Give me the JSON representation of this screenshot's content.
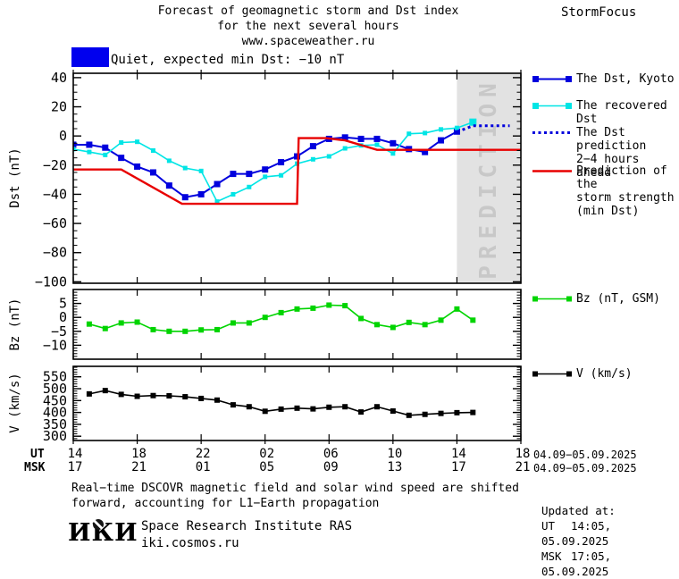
{
  "header": {
    "title_line1": "Forecast of geomagnetic storm and Dst index",
    "title_line2": "for the next several hours",
    "title_line3": "www.spaceweather.ru",
    "brand": "StormFocus"
  },
  "status": {
    "label": "Quiet, expected min Dst: −10 nT"
  },
  "legend": {
    "dst_kyoto": "The Dst, Kyoto",
    "recovered": "The recovered Dst",
    "prediction_l1": "The Dst prediction",
    "prediction_l2": "2−4 hours ahead",
    "storm_l1": "Prediction of the",
    "storm_l2": "storm strength",
    "storm_l3": "(min Dst)",
    "bz": "Bz (nT, GSM)",
    "v": "V (km/s)"
  },
  "prediction_zone": {
    "label": "PREDICTION"
  },
  "axes": {
    "ut_label": "UT",
    "msk_label": "MSK",
    "ut_ticks": [
      "14",
      "18",
      "22",
      "02",
      "06",
      "10",
      "14",
      "18"
    ],
    "msk_ticks": [
      "17",
      "21",
      "01",
      "05",
      "09",
      "13",
      "17",
      "21"
    ],
    "ut_date": "04.09−05.09.2025",
    "msk_date": "04.09−05.09.2025"
  },
  "footer": {
    "note_line1": "Real−time DSCOVR magnetic field and solar wind speed are shifted",
    "note_line2": "forward, accounting for L1−Earth propagation",
    "logo": "ИКИ",
    "institute": "Space Research Institute RAS",
    "site": "iki.cosmos.ru",
    "updated_label": "Updated at:",
    "ut_label": "UT",
    "ut_value": "14:05, 05.09.2025",
    "msk_label": "MSK",
    "msk_value": "17:05, 05.09.2025"
  },
  "colors": {
    "dst_kyoto": "#0000dd",
    "recovered": "#00e5e5",
    "prediction": "#0000dd",
    "storm": "#e80000",
    "bz": "#00d400",
    "v": "#000000",
    "quiet_level": "#0000ee",
    "zone_bg": "#e2e2e2",
    "zone_text": "#c8c8c8"
  },
  "chart_data": {
    "type": "line",
    "title": "Forecast of geomagnetic storm and Dst index for the next several hours",
    "xlim": [
      14,
      42
    ],
    "x_major_step": 4,
    "x_ticks_ut": [
      "14",
      "18",
      "22",
      "02",
      "06",
      "10",
      "14",
      "18"
    ],
    "x_ticks_msk": [
      "17",
      "21",
      "01",
      "05",
      "09",
      "13",
      "17",
      "21"
    ],
    "date_range": "04.09-05.09.2025",
    "prediction_zone_x": [
      38,
      42
    ],
    "panels": [
      {
        "name": "dst",
        "ylabel": "Dst (nT)",
        "ylim": [
          -101,
          43
        ],
        "yticks": [
          40,
          20,
          0,
          -20,
          -40,
          -60,
          -80,
          -100
        ],
        "minor_step": 5,
        "major_step": 20,
        "series": [
          {
            "key": "dst_kyoto",
            "name": "The Dst, Kyoto",
            "marker": 7,
            "width": 2,
            "x": [
              14,
              15,
              16,
              17,
              18,
              19,
              20,
              21,
              22,
              23,
              24,
              25,
              26,
              27,
              28,
              29,
              30,
              31,
              32,
              33,
              34,
              35,
              36,
              37,
              38
            ],
            "y": [
              -6,
              -6,
              -8,
              -15,
              -21,
              -25,
              -34,
              -42,
              -40,
              -33,
              -26,
              -26,
              -23,
              -18,
              -14,
              -7,
              -2,
              -1,
              -2,
              -2,
              -5,
              -9,
              -11,
              -3,
              3
            ]
          },
          {
            "key": "recovered",
            "name": "The recovered Dst",
            "marker": 5,
            "marker_last": 8,
            "width": 1.6,
            "x": [
              14,
              15,
              16,
              17,
              18,
              19,
              20,
              21,
              22,
              23,
              24,
              25,
              26,
              27,
              28,
              29,
              30,
              31,
              32,
              33,
              34,
              35,
              36,
              37,
              38,
              39
            ],
            "y": [
              -9,
              -11,
              -13,
              -4.5,
              -4,
              -10,
              -17,
              -22,
              -24,
              -45,
              -40,
              -35,
              -28,
              -27,
              -19,
              -16,
              -14,
              -8.5,
              -6.5,
              -6,
              -12,
              1.5,
              2,
              4.5,
              5.5,
              9.5
            ]
          },
          {
            "key": "prediction",
            "name": "The Dst prediction 2-4 hours ahead",
            "style": "dotted",
            "width": 3,
            "points": [
              [
                38,
                3
              ],
              [
                38.5,
                4.8
              ],
              [
                39,
                7
              ],
              [
                41.3,
                7
              ]
            ]
          },
          {
            "key": "storm",
            "name": "Prediction of the storm strength (min Dst)",
            "width": 2.4,
            "points": [
              [
                14,
                -23
              ],
              [
                17,
                -23
              ],
              [
                20.8,
                -46.5
              ],
              [
                28.0,
                -46.5
              ],
              [
                28.1,
                -1.5
              ],
              [
                29.8,
                -1.5
              ],
              [
                31,
                -3
              ],
              [
                33,
                -9.5
              ],
              [
                42,
                -9.5
              ]
            ]
          }
        ]
      },
      {
        "name": "bz",
        "ylabel": "Bz (nT)",
        "ylim": [
          -15,
          10
        ],
        "yticks": [
          5,
          0,
          -5,
          -10
        ],
        "minor_step": 1,
        "major_step": 5,
        "series": [
          {
            "key": "bz",
            "name": "Bz (nT, GSM)",
            "marker": 6,
            "width": 1.6,
            "x": [
              15,
              16,
              17,
              18,
              19,
              20,
              21,
              22,
              23,
              24,
              25,
              26,
              27,
              28,
              29,
              30,
              31,
              32,
              33,
              34,
              35,
              36,
              37,
              38,
              39
            ],
            "y": [
              -2.4,
              -4,
              -2,
              -1.7,
              -4.4,
              -5,
              -5,
              -4.5,
              -4.4,
              -2,
              -2,
              0,
              1.7,
              3,
              3.3,
              4.4,
              4.2,
              -0.4,
              -2.6,
              -3.6,
              -1.8,
              -2.6,
              -1,
              3,
              -1
            ]
          }
        ]
      },
      {
        "name": "v",
        "ylabel": "V (km/s)",
        "ylim": [
          282,
          594
        ],
        "yticks": [
          550,
          500,
          450,
          400,
          350,
          300
        ],
        "minor_step": 10,
        "major_step": 50,
        "series": [
          {
            "key": "v",
            "name": "V (km/s)",
            "marker": 6,
            "width": 1.6,
            "x": [
              15,
              16,
              17,
              18,
              19,
              20,
              21,
              22,
              23,
              24,
              25,
              26,
              27,
              28,
              29,
              30,
              31,
              32,
              33,
              34,
              35,
              36,
              37,
              38,
              39
            ],
            "y": [
              478,
              492,
              476,
              468,
              471,
              470,
              466,
              459,
              452,
              432,
              424,
              405,
              414,
              418,
              415,
              422,
              424,
              402,
              424,
              406,
              388,
              392,
              396,
              399,
              400
            ]
          }
        ]
      }
    ]
  }
}
